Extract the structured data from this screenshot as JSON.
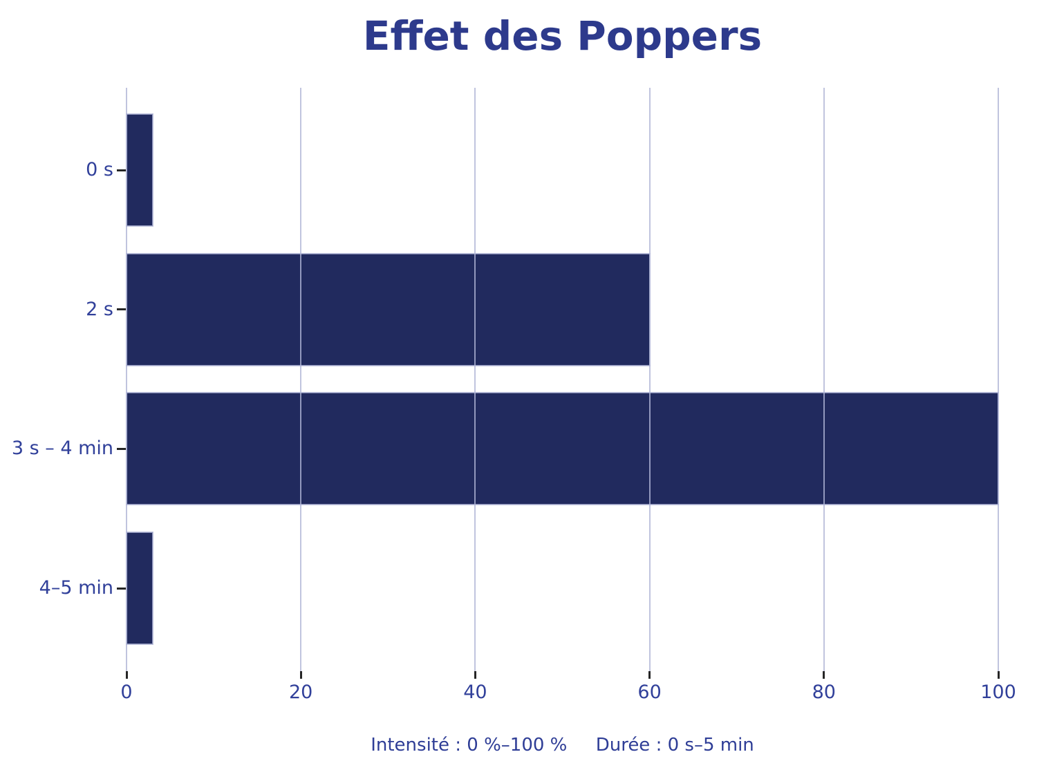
{
  "chart_data": {
    "type": "bar",
    "orientation": "horizontal",
    "title": "Effet des Poppers",
    "categories": [
      "0 s",
      "2 s",
      "3 s – 4 min",
      "4–5 min"
    ],
    "values": [
      3,
      60,
      100,
      3
    ],
    "xlabel": "Intensité : 0 %–100 %     Durée : 0 s–5 min",
    "ylabel": "",
    "xlim": [
      0,
      100
    ],
    "xticks": [
      0,
      20,
      40,
      60,
      80,
      100
    ],
    "grid": "vertical-over-bars",
    "legend": "none",
    "colors": {
      "bar": "#212a5e",
      "bar_edge": "rgba(176,181,214,0.8)",
      "grid": "rgba(176,181,214,0.8)",
      "title_text": "#2d3a8c",
      "tick_text": "#31409a",
      "caption_text": "#2e3d96",
      "tick_mark": "#262626",
      "background": "#ffffff"
    }
  }
}
